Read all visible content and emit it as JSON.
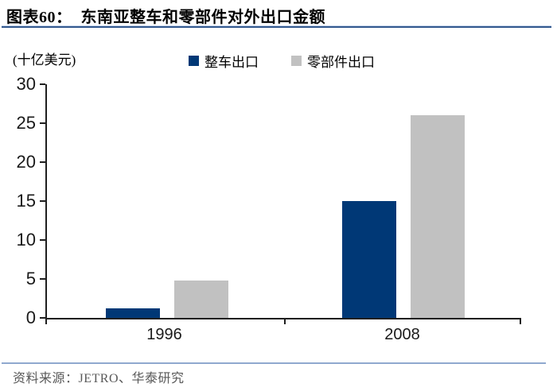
{
  "header": {
    "title": "图表60：  东南亚整车和零部件对外出口金额"
  },
  "chart_data": {
    "type": "bar",
    "title": "东南亚整车和零部件对外出口金额",
    "unit_label": "(十亿美元)",
    "categories": [
      "1996",
      "2008"
    ],
    "series": [
      {
        "name": "整车出口",
        "color": "#003876",
        "values": [
          1.2,
          15
        ]
      },
      {
        "name": "零部件出口",
        "color": "#c1c1c1",
        "values": [
          4.8,
          26
        ]
      }
    ],
    "ylim": [
      0,
      30
    ],
    "yticks": [
      0,
      5,
      10,
      15,
      20,
      25,
      30
    ],
    "grid": false,
    "legend_position": "top-center"
  },
  "footer": {
    "source": "资料来源：JETRO、华泰研究"
  },
  "colors": {
    "bar_vehicle": "#003876",
    "bar_parts": "#c1c1c1",
    "title_rule": "#33598f",
    "footer_rule": "#8fa8cf",
    "axis": "#1f1f1f",
    "source_text": "#595959"
  }
}
